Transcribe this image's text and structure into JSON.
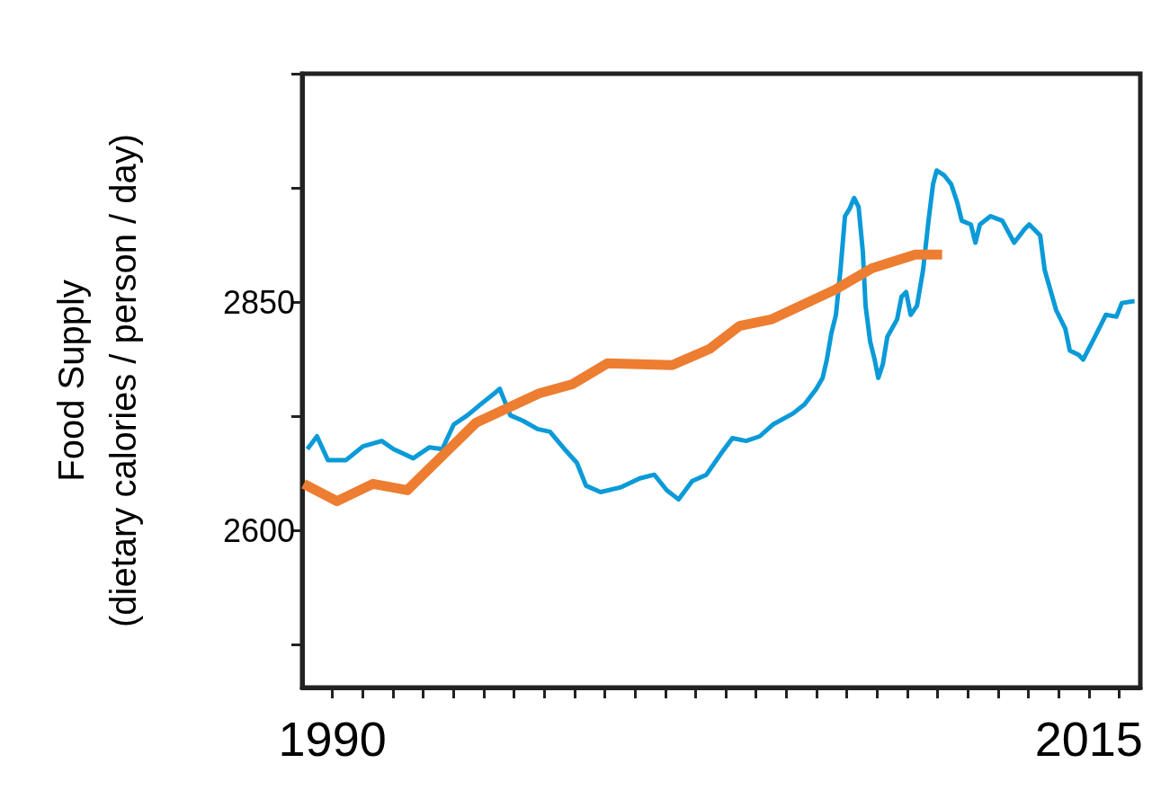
{
  "chart_data": {
    "type": "line",
    "ylabel": "Food Supply\n(dietary calories / person / day)",
    "xlim": [
      1989,
      2016.7
    ],
    "ylim": [
      2428,
      3100
    ],
    "xticks": [
      {
        "value": 1990,
        "label": "1990"
      },
      {
        "value": 1991,
        "label": null
      },
      {
        "value": 1992,
        "label": null
      },
      {
        "value": 1993,
        "label": null
      },
      {
        "value": 1994,
        "label": null
      },
      {
        "value": 1995,
        "label": null
      },
      {
        "value": 1996,
        "label": null
      },
      {
        "value": 1997,
        "label": null
      },
      {
        "value": 1998,
        "label": null
      },
      {
        "value": 1999,
        "label": null
      },
      {
        "value": 2000,
        "label": null
      },
      {
        "value": 2001,
        "label": null
      },
      {
        "value": 2002,
        "label": null
      },
      {
        "value": 2003,
        "label": null
      },
      {
        "value": 2004,
        "label": null
      },
      {
        "value": 2005,
        "label": null
      },
      {
        "value": 2006,
        "label": null
      },
      {
        "value": 2007,
        "label": null
      },
      {
        "value": 2008,
        "label": null
      },
      {
        "value": 2009,
        "label": null
      },
      {
        "value": 2010,
        "label": null
      },
      {
        "value": 2011,
        "label": null
      },
      {
        "value": 2012,
        "label": null
      },
      {
        "value": 2013,
        "label": null
      },
      {
        "value": 2014,
        "label": null
      },
      {
        "value": 2015,
        "label": "2015"
      },
      {
        "value": 2016,
        "label": null
      }
    ],
    "yticks": [
      {
        "value": 2475,
        "label": null
      },
      2600,
      {
        "value": 2725,
        "label": null
      },
      2850,
      {
        "value": 2975,
        "label": null
      },
      {
        "value": 3100,
        "label": null
      }
    ],
    "grid": false,
    "marker": "none",
    "line_style": "solid",
    "series": [
      {
        "color": "#0a9ad8",
        "x": [
          1989.17,
          1989.49,
          1989.85,
          1990.45,
          1991.01,
          1991.63,
          1992.02,
          1992.67,
          1993.21,
          1993.63,
          1994.01,
          1994.46,
          1994.9,
          1995.35,
          1995.53,
          1995.88,
          1996.3,
          1996.78,
          1997.19,
          1997.67,
          1998.08,
          1998.38,
          1998.86,
          1999.51,
          2000.16,
          2000.64,
          2001.05,
          2001.44,
          2001.89,
          2002.36,
          2002.84,
          2003.22,
          2003.67,
          2004.12,
          2004.56,
          2005.22,
          2005.6,
          2005.99,
          2006.2,
          2006.34,
          2006.49,
          2006.64,
          2006.79,
          2006.94,
          2007.09,
          2007.24,
          2007.39,
          2007.53,
          2007.62,
          2007.77,
          2007.92,
          2008.04,
          2008.19,
          2008.34,
          2008.66,
          2008.81,
          2008.96,
          2009.11,
          2009.32,
          2009.52,
          2009.7,
          2009.85,
          2009.97,
          2010.21,
          2010.45,
          2010.65,
          2010.8,
          2011.1,
          2011.25,
          2011.4,
          2011.75,
          2012.14,
          2012.53,
          2012.88,
          2013.03,
          2013.39,
          2013.54,
          2013.92,
          2014.22,
          2014.37,
          2014.67,
          2014.81,
          2015.2,
          2015.56,
          2015.91,
          2016.09,
          2016.51
        ],
        "values": [
          2689,
          2703,
          2677,
          2677,
          2692,
          2698,
          2689,
          2679,
          2691,
          2689,
          2716,
          2726,
          2738,
          2750,
          2755,
          2726,
          2720,
          2711,
          2708,
          2689,
          2674,
          2649,
          2642,
          2647,
          2657,
          2661,
          2644,
          2634,
          2654,
          2661,
          2684,
          2701,
          2698,
          2703,
          2716,
          2728,
          2738,
          2755,
          2767,
          2787,
          2816,
          2836,
          2885,
          2944,
          2952,
          2964,
          2954,
          2905,
          2846,
          2807,
          2787,
          2767,
          2782,
          2812,
          2831,
          2856,
          2861,
          2836,
          2846,
          2885,
          2939,
          2979,
          2994,
          2989,
          2979,
          2959,
          2939,
          2935,
          2915,
          2935,
          2944,
          2939,
          2915,
          2930,
          2935,
          2923,
          2885,
          2841,
          2821,
          2797,
          2792,
          2787,
          2812,
          2836,
          2834,
          2849,
          2851
        ]
      },
      {
        "color": "#ed7d31",
        "x": [
          1989.05,
          1990.15,
          1991.34,
          1992.47,
          1994.75,
          1996.83,
          1997.93,
          1999.09,
          2001.23,
          2002.48,
          2003.46,
          2004.5,
          2006.64,
          2007.83,
          2009.26,
          2010.15
        ],
        "values": [
          2651,
          2632,
          2651,
          2644,
          2718,
          2750,
          2760,
          2783,
          2781,
          2799,
          2824,
          2831,
          2864,
          2887,
          2902,
          2902
        ]
      }
    ]
  }
}
